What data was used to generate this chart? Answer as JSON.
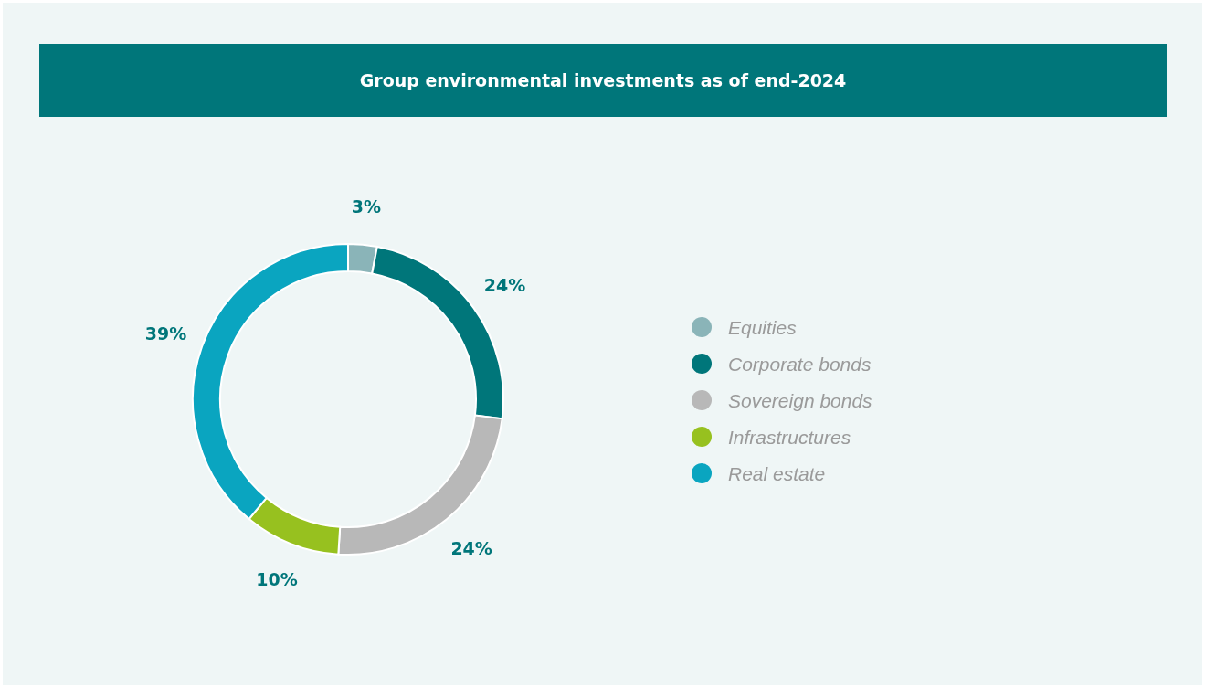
{
  "chart_data": {
    "type": "donut",
    "title": "Group environmental investments as of end-2024",
    "categories": [
      "Equities",
      "Corporate bonds",
      "Sovereign bonds",
      "Infrastructures",
      "Real estate"
    ],
    "values": [
      3,
      24,
      24,
      10,
      39
    ],
    "colors": [
      "#8ab4b8",
      "#00767a",
      "#b8b8b8",
      "#97c11f",
      "#0aa5c0"
    ],
    "value_labels": [
      "3%",
      "24%",
      "24%",
      "10%",
      "39%"
    ],
    "legend": "right"
  }
}
